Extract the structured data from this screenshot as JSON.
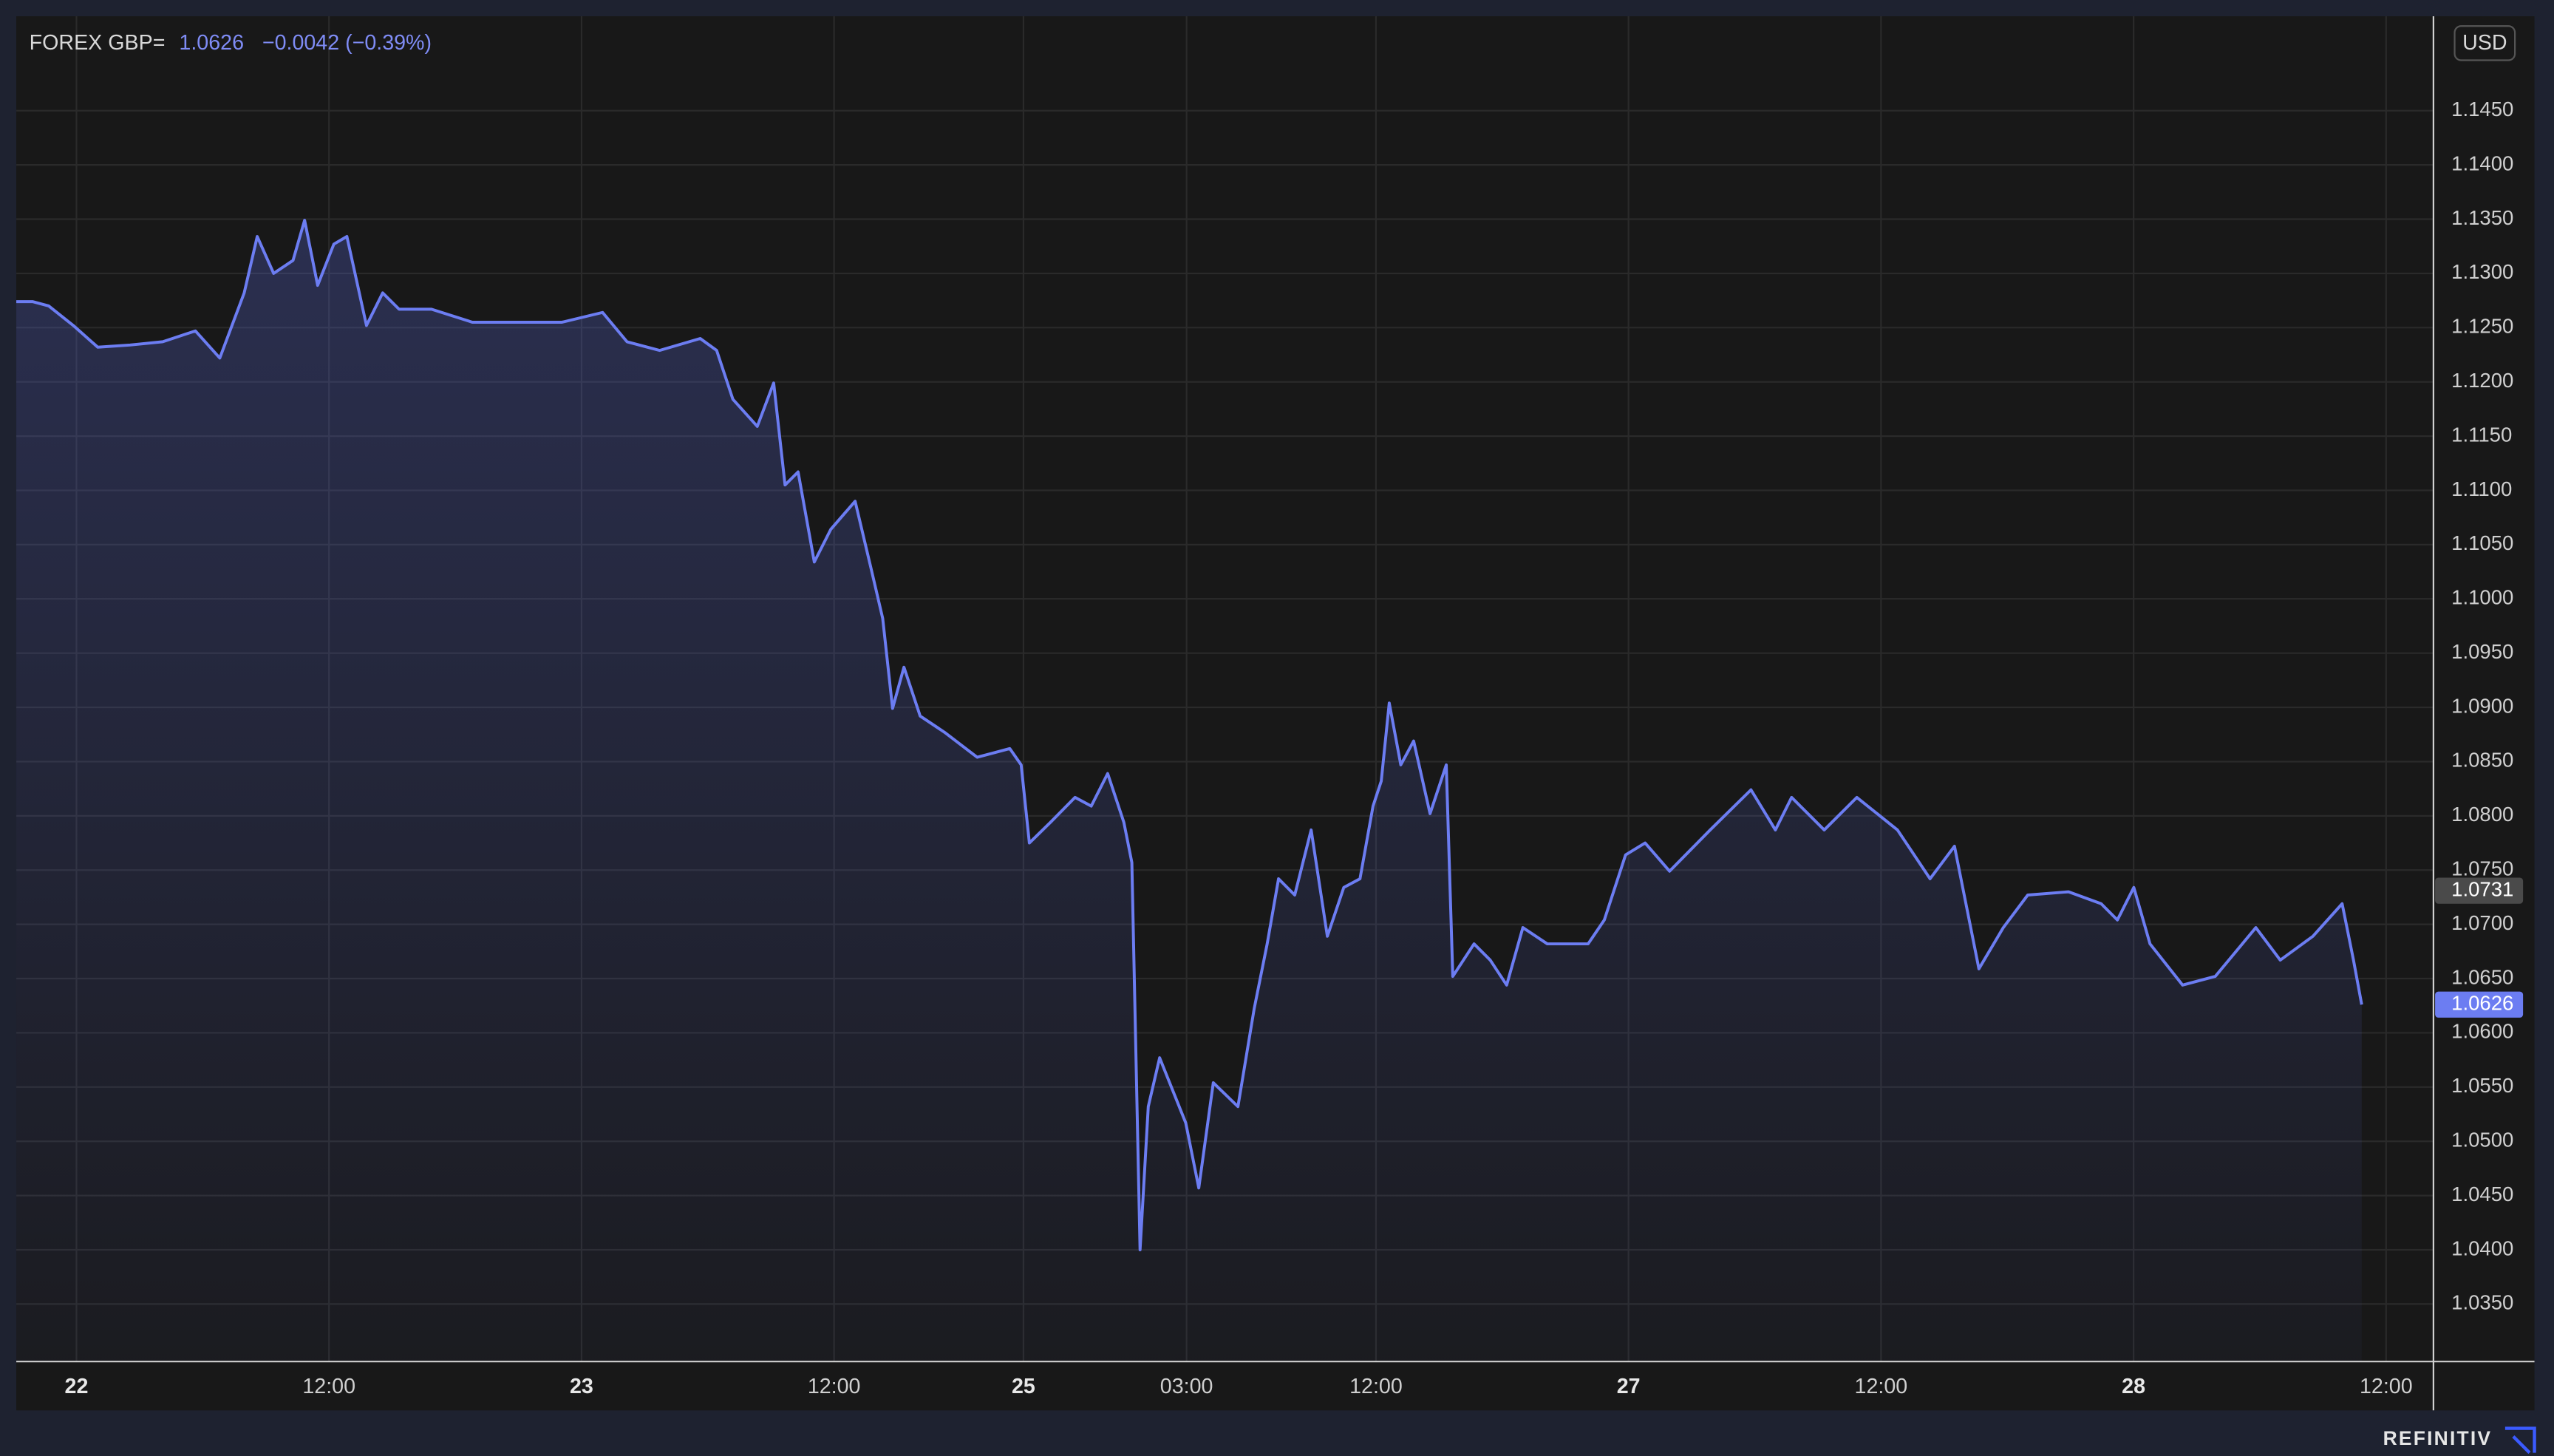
{
  "chart_data": {
    "type": "line",
    "instrument": "FOREX GBP=",
    "last_price": "1.0626",
    "change": "−0.0042 (−0.39%)",
    "currency": "USD",
    "brand": "REFINITIV",
    "x": [
      -2.86,
      -2.09,
      -1.32,
      -0.15,
      1.01,
      2.55,
      4.1,
      5.65,
      6.81,
      7.97,
      8.59,
      9.37,
      10.29,
      10.84,
      11.46,
      12.23,
      12.85,
      13.78,
      14.55,
      15.33,
      16.87,
      18.81,
      21.13,
      23.07,
      25.0,
      26.16,
      27.71,
      29.64,
      30.42,
      31.19,
      32.35,
      33.13,
      33.67,
      34.29,
      35.06,
      35.84,
      37.0,
      37.77,
      38.31,
      38.78,
      39.32,
      40.09,
      41.25,
      42.8,
      44.35,
      44.89,
      45.28,
      46.28,
      47.45,
      48.22,
      49.0,
      49.77,
      50.15,
      50.54,
      50.93,
      51.47,
      52.09,
      52.71,
      53.33,
      54.02,
      55.19,
      55.96,
      56.58,
      57.12,
      57.89,
      58.67,
      59.44,
      60.22,
      60.99,
      61.61,
      62.0,
      62.38,
      62.93,
      63.54,
      64.32,
      65.09,
      65.4,
      66.41,
      67.18,
      67.96,
      68.73,
      69.89,
      71.83,
      72.6,
      73.61,
      74.54,
      75.7,
      77.63,
      79.57,
      80.73,
      81.5,
      83.05,
      84.6,
      86.53,
      88.08,
      89.24,
      90.4,
      91.56,
      92.72,
      94.66,
      96.21,
      96.98,
      97.76,
      98.53,
      100.08,
      101.63,
      103.56,
      104.72,
      106.27,
      107.66,
      108.2,
      108.59
    ],
    "series": [
      {
        "name": "GBP=",
        "color": "#6c7df2",
        "values": [
          1.1274,
          1.1274,
          1.127,
          1.1252,
          1.1232,
          1.1234,
          1.1237,
          1.1247,
          1.1222,
          1.1282,
          1.1334,
          1.13,
          1.1312,
          1.1349,
          1.1289,
          1.1327,
          1.1334,
          1.1252,
          1.1282,
          1.1267,
          1.1267,
          1.1255,
          1.1255,
          1.1255,
          1.1264,
          1.1237,
          1.1229,
          1.124,
          1.1229,
          1.1184,
          1.1159,
          1.1199,
          1.1105,
          1.1117,
          1.1034,
          1.1064,
          1.109,
          1.1027,
          1.0982,
          1.0899,
          1.0937,
          1.0892,
          1.0877,
          1.0854,
          1.0862,
          1.0847,
          1.0775,
          1.0794,
          1.0817,
          1.0809,
          1.0839,
          1.0794,
          1.0757,
          1.04,
          1.0532,
          1.0577,
          1.0547,
          1.0517,
          1.0457,
          1.0554,
          1.0532,
          1.0622,
          1.0682,
          1.0742,
          1.0727,
          1.0787,
          1.0689,
          1.0734,
          1.0742,
          1.0809,
          1.0832,
          1.0904,
          1.0847,
          1.0869,
          1.0802,
          1.0847,
          1.0652,
          1.0682,
          1.0667,
          1.0644,
          1.0697,
          1.0682,
          1.0682,
          1.0704,
          1.0764,
          1.0775,
          1.0749,
          1.0787,
          1.0824,
          1.0787,
          1.0817,
          1.0787,
          1.0817,
          1.0787,
          1.0742,
          1.0772,
          1.0659,
          1.0697,
          1.0727,
          1.073,
          1.0719,
          1.0704,
          1.0734,
          1.0682,
          1.0644,
          1.0652,
          1.0697,
          1.0667,
          1.0689,
          1.0719,
          1.0667,
          1.0626
        ]
      }
    ],
    "price_tags": [
      {
        "value": 1.0731,
        "color": "#4a4a4a"
      },
      {
        "value": 1.0626,
        "color": "#6c7df2"
      }
    ],
    "xlim": [
      -2.86,
      112
    ],
    "xticks": [
      {
        "value": 0,
        "label": "22"
      },
      {
        "value": 12,
        "label": "12:00"
      },
      {
        "value": 24,
        "label": "23"
      },
      {
        "value": 36,
        "label": "12:00"
      },
      {
        "value": 45,
        "label": "25"
      },
      {
        "value": 52.75,
        "label": "03:00"
      },
      {
        "value": 61.75,
        "label": "12:00"
      },
      {
        "value": 73.75,
        "label": "27"
      },
      {
        "value": 85.75,
        "label": "12:00"
      },
      {
        "value": 97.75,
        "label": "28"
      },
      {
        "value": 109.75,
        "label": "12:00"
      }
    ],
    "ylim": [
      1.0297,
      1.1537
    ],
    "yticks": [
      {
        "value": 1.035,
        "label": "1.0350"
      },
      {
        "value": 1.04,
        "label": "1.0400"
      },
      {
        "value": 1.045,
        "label": "1.0450"
      },
      {
        "value": 1.05,
        "label": "1.0500"
      },
      {
        "value": 1.055,
        "label": "1.0550"
      },
      {
        "value": 1.06,
        "label": "1.0600"
      },
      {
        "value": 1.065,
        "label": "1.0650"
      },
      {
        "value": 1.07,
        "label": "1.0700"
      },
      {
        "value": 1.075,
        "label": "1.0750"
      },
      {
        "value": 1.08,
        "label": "1.0800"
      },
      {
        "value": 1.085,
        "label": "1.0850"
      },
      {
        "value": 1.09,
        "label": "1.0900"
      },
      {
        "value": 1.095,
        "label": "1.0950"
      },
      {
        "value": 1.1,
        "label": "1.1000"
      },
      {
        "value": 1.105,
        "label": "1.1050"
      },
      {
        "value": 1.11,
        "label": "1.1100"
      },
      {
        "value": 1.115,
        "label": "1.1150"
      },
      {
        "value": 1.12,
        "label": "1.1200"
      },
      {
        "value": 1.125,
        "label": "1.1250"
      },
      {
        "value": 1.13,
        "label": "1.1300"
      },
      {
        "value": 1.135,
        "label": "1.1350"
      },
      {
        "value": 1.14,
        "label": "1.1400"
      },
      {
        "value": 1.145,
        "label": "1.1450"
      }
    ],
    "grid": true
  }
}
